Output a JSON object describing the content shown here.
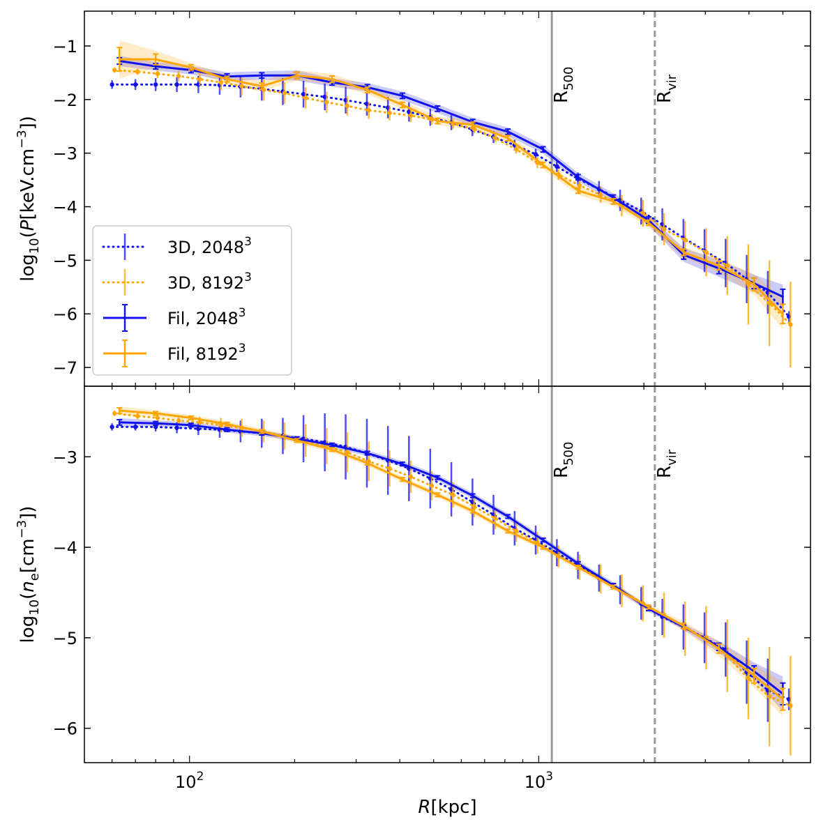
{
  "chart_data": {
    "type": "line",
    "xscale": "log",
    "xlim": [
      50,
      6000
    ],
    "xlabel_italic": "R",
    "xlabel_unit": "[kpc]",
    "xticks": [
      {
        "value": 100,
        "base": "10",
        "exp": "2"
      },
      {
        "value": 1000,
        "base": "10",
        "exp": "3"
      }
    ],
    "colors": {
      "blue": "#1111ee",
      "orange": "#ffa500",
      "ref_solid": "#999999",
      "ref_dashed": "#999999"
    },
    "ref_lines": {
      "r500": {
        "x": 1090,
        "label_main": "R",
        "label_sub": "500",
        "style": "solid"
      },
      "rvir": {
        "x": 2150,
        "label_main": "R",
        "label_sub": "vir",
        "style": "dashed"
      }
    },
    "legend": {
      "location": "lower-left of top panel",
      "entries": [
        {
          "key": "d3_2048",
          "text": "3D, 2048",
          "sup": "3",
          "color": "blue",
          "style": "dotted"
        },
        {
          "key": "d3_8192",
          "text": "3D, 8192",
          "sup": "3",
          "color": "orange",
          "style": "dotted"
        },
        {
          "key": "fil_2048",
          "text": "Fil, 2048",
          "sup": "3",
          "color": "blue",
          "style": "solid"
        },
        {
          "key": "fil_8192",
          "text": "Fil, 8192",
          "sup": "3",
          "color": "orange",
          "style": "solid"
        }
      ]
    },
    "panels": [
      {
        "name": "pressure",
        "ylabel": {
          "pre": "log",
          "pre_sub": "10",
          "open": "(",
          "var": "P",
          "unit_pre": "[keV.cm",
          "unit_sup": "−3",
          "close": "])"
        },
        "ylim": [
          -7.35,
          -0.35
        ],
        "yticks": [
          {
            "value": -1,
            "label": "−1"
          },
          {
            "value": -2,
            "label": "−2"
          },
          {
            "value": -3,
            "label": "−3"
          },
          {
            "value": -4,
            "label": "−4"
          },
          {
            "value": -5,
            "label": "−5"
          },
          {
            "value": -6,
            "label": "−6"
          },
          {
            "value": -7,
            "label": "−7"
          }
        ],
        "series": [
          {
            "name": "3D, 2048³",
            "color": "blue",
            "style": "dotted",
            "x": [
              60,
              70,
              80,
              92,
              106,
              122,
              140,
              161,
              185,
              212,
              244,
              280,
              322,
              370,
              425,
              489,
              562,
              646,
              742,
              853,
              980,
              1127,
              1295,
              1488,
              1710,
              1965,
              2259,
              2596,
              2983,
              3428,
              3940,
              4528,
              5204
            ],
            "y": [
              -1.72,
              -1.72,
              -1.72,
              -1.72,
              -1.72,
              -1.73,
              -1.76,
              -1.8,
              -1.85,
              -1.9,
              -1.95,
              -2.01,
              -2.08,
              -2.15,
              -2.23,
              -2.33,
              -2.43,
              -2.56,
              -2.7,
              -2.85,
              -3.02,
              -3.25,
              -3.48,
              -3.67,
              -3.88,
              -4.08,
              -4.33,
              -4.58,
              -4.82,
              -5.05,
              -5.35,
              -5.6,
              -6.05
            ],
            "err": [
              0.08,
              0.1,
              0.12,
              0.14,
              0.16,
              0.18,
              0.2,
              0.22,
              0.25,
              0.25,
              0.25,
              0.25,
              0.22,
              0.2,
              0.18,
              0.16,
              0.14,
              0.12,
              0.11,
              0.1,
              0.1,
              0.1,
              0.12,
              0.15,
              0.2,
              0.25,
              0.3,
              0.35,
              0.4,
              0.45,
              0.45,
              0.4,
              0.1
            ]
          },
          {
            "name": "3D, 8192³",
            "color": "orange",
            "style": "dotted",
            "x": [
              61,
              71,
              81,
              93,
              107,
              123,
              141,
              163,
              187,
              215,
              247,
              283,
              326,
              374,
              430,
              494,
              568,
              653,
              750,
              862,
              991,
              1139,
              1309,
              1504,
              1729,
              1987,
              2284,
              2624,
              3016,
              3466,
              3983,
              4577,
              5260
            ],
            "y": [
              -1.45,
              -1.48,
              -1.52,
              -1.56,
              -1.62,
              -1.68,
              -1.75,
              -1.82,
              -1.88,
              -1.97,
              -2.05,
              -2.12,
              -2.2,
              -2.25,
              -2.3,
              -2.37,
              -2.45,
              -2.55,
              -2.72,
              -2.93,
              -3.18,
              -3.4,
              -3.6,
              -3.78,
              -3.98,
              -4.12,
              -4.42,
              -4.62,
              -4.85,
              -5.1,
              -5.45,
              -5.8,
              -6.2
            ],
            "err": [
              0.05,
              0.06,
              0.08,
              0.1,
              0.12,
              0.15,
              0.18,
              0.2,
              0.2,
              0.2,
              0.2,
              0.18,
              0.16,
              0.14,
              0.12,
              0.1,
              0.1,
              0.08,
              0.08,
              0.08,
              0.1,
              0.1,
              0.12,
              0.15,
              0.2,
              0.25,
              0.3,
              0.35,
              0.45,
              0.55,
              0.75,
              0.8,
              0.8
            ]
          },
          {
            "name": "Fil, 2048³",
            "color": "blue",
            "style": "solid",
            "x": [
              63,
              80,
              101,
              128,
              161,
              203,
              256,
              323,
              407,
              513,
              647,
              816,
              1029,
              1297,
              1636,
              2063,
              2601,
              3280,
              4137,
              5000
            ],
            "y": [
              -1.28,
              -1.38,
              -1.45,
              -1.57,
              -1.55,
              -1.55,
              -1.68,
              -1.77,
              -1.93,
              -2.17,
              -2.42,
              -2.6,
              -2.93,
              -3.45,
              -3.83,
              -4.25,
              -4.9,
              -5.15,
              -5.43,
              -5.68
            ],
            "err": [
              0.06,
              0.05,
              0.05,
              0.05,
              0.05,
              0.06,
              0.05,
              0.05,
              0.05,
              0.05,
              0.05,
              0.05,
              0.05,
              0.05,
              0.05,
              0.06,
              0.08,
              0.1,
              0.1,
              0.14
            ]
          },
          {
            "name": "Fil, 8192³",
            "color": "orange",
            "style": "solid",
            "x": [
              63,
              80,
              101,
              128,
              161,
              203,
              256,
              323,
              407,
              513,
              647,
              816,
              1029,
              1297,
              1636,
              2063,
              2601,
              3280,
              4137,
              5000
            ],
            "y": [
              -1.25,
              -1.25,
              -1.4,
              -1.62,
              -1.75,
              -1.55,
              -1.62,
              -1.82,
              -2.1,
              -2.4,
              -2.47,
              -2.72,
              -3.22,
              -3.7,
              -3.9,
              -4.3,
              -4.85,
              -5.1,
              -5.45,
              -6.0
            ],
            "err": [
              0.22,
              0.1,
              0.05,
              0.05,
              0.06,
              0.06,
              0.06,
              0.05,
              0.05,
              0.05,
              0.05,
              0.05,
              0.05,
              0.05,
              0.05,
              0.05,
              0.06,
              0.08,
              0.12,
              0.18
            ]
          }
        ]
      },
      {
        "name": "density",
        "ylabel": {
          "pre": "log",
          "pre_sub": "10",
          "open": "(",
          "var": "n",
          "var_sub": "e",
          "unit_pre": "[cm",
          "unit_sup": "−3",
          "close": "])"
        },
        "ylim": [
          -6.38,
          -2.22
        ],
        "yticks": [
          {
            "value": -3,
            "label": "−3"
          },
          {
            "value": -4,
            "label": "−4"
          },
          {
            "value": -5,
            "label": "−5"
          },
          {
            "value": -6,
            "label": "−6"
          }
        ],
        "series": [
          {
            "name": "3D, 2048³",
            "color": "blue",
            "style": "dotted",
            "x": [
              60,
              70,
              80,
              92,
              106,
              122,
              140,
              161,
              185,
              212,
              244,
              280,
              322,
              370,
              425,
              489,
              562,
              646,
              742,
              853,
              980,
              1127,
              1295,
              1488,
              1710,
              1965,
              2259,
              2596,
              2983,
              3428,
              3940,
              4528,
              5204
            ],
            "y": [
              -2.67,
              -2.67,
              -2.67,
              -2.68,
              -2.69,
              -2.7,
              -2.72,
              -2.74,
              -2.77,
              -2.8,
              -2.84,
              -2.89,
              -2.96,
              -3.04,
              -3.13,
              -3.24,
              -3.36,
              -3.5,
              -3.64,
              -3.79,
              -3.92,
              -4.06,
              -4.2,
              -4.34,
              -4.47,
              -4.62,
              -4.77,
              -4.88,
              -5.0,
              -5.13,
              -5.38,
              -5.58,
              -5.68
            ],
            "err": [
              0.04,
              0.04,
              0.05,
              0.06,
              0.07,
              0.09,
              0.12,
              0.16,
              0.2,
              0.26,
              0.32,
              0.36,
              0.38,
              0.38,
              0.36,
              0.33,
              0.3,
              0.26,
              0.22,
              0.19,
              0.16,
              0.15,
              0.15,
              0.15,
              0.16,
              0.18,
              0.2,
              0.25,
              0.28,
              0.3,
              0.35,
              0.35,
              0.12
            ]
          },
          {
            "name": "3D, 8192³",
            "color": "orange",
            "style": "dotted",
            "x": [
              61,
              71,
              81,
              93,
              107,
              123,
              141,
              163,
              187,
              215,
              247,
              283,
              326,
              374,
              430,
              494,
              568,
              653,
              750,
              862,
              991,
              1139,
              1309,
              1504,
              1729,
              1987,
              2284,
              2624,
              3016,
              3466,
              3983,
              4577,
              5260
            ],
            "y": [
              -2.52,
              -2.55,
              -2.57,
              -2.6,
              -2.62,
              -2.65,
              -2.68,
              -2.72,
              -2.77,
              -2.82,
              -2.88,
              -2.95,
              -3.05,
              -3.13,
              -3.22,
              -3.32,
              -3.42,
              -3.55,
              -3.68,
              -3.82,
              -3.95,
              -4.1,
              -4.22,
              -4.35,
              -4.48,
              -4.62,
              -4.75,
              -4.9,
              -5.0,
              -5.2,
              -5.45,
              -5.65,
              -5.75
            ],
            "err": [
              0.03,
              0.04,
              0.05,
              0.05,
              0.06,
              0.08,
              0.1,
              0.12,
              0.15,
              0.18,
              0.2,
              0.22,
              0.22,
              0.2,
              0.18,
              0.16,
              0.14,
              0.12,
              0.12,
              0.12,
              0.12,
              0.12,
              0.14,
              0.16,
              0.18,
              0.2,
              0.25,
              0.3,
              0.35,
              0.4,
              0.45,
              0.55,
              0.55
            ]
          },
          {
            "name": "Fil, 2048³",
            "color": "blue",
            "style": "solid",
            "x": [
              63,
              80,
              101,
              128,
              161,
              203,
              256,
              323,
              407,
              513,
              647,
              816,
              1029,
              1297,
              1636,
              2063,
              2601,
              3280,
              4137,
              5000
            ],
            "y": [
              -2.62,
              -2.63,
              -2.65,
              -2.7,
              -2.74,
              -2.8,
              -2.87,
              -2.96,
              -3.08,
              -3.23,
              -3.43,
              -3.66,
              -3.92,
              -4.18,
              -4.42,
              -4.68,
              -4.88,
              -5.1,
              -5.37,
              -5.62
            ],
            "err": [
              0.03,
              0.02,
              0.02,
              0.02,
              0.02,
              0.02,
              0.02,
              0.02,
              0.02,
              0.02,
              0.02,
              0.02,
              0.02,
              0.02,
              0.02,
              0.02,
              0.02,
              0.04,
              0.06,
              0.12
            ]
          },
          {
            "name": "Fil, 8192³",
            "color": "orange",
            "style": "solid",
            "x": [
              63,
              80,
              101,
              128,
              161,
              203,
              256,
              323,
              407,
              513,
              647,
              816,
              1029,
              1297,
              1636,
              2063,
              2601,
              3280,
              4137,
              5000
            ],
            "y": [
              -2.49,
              -2.52,
              -2.57,
              -2.64,
              -2.72,
              -2.82,
              -2.92,
              -3.07,
              -3.25,
              -3.42,
              -3.6,
              -3.82,
              -4.0,
              -4.22,
              -4.44,
              -4.66,
              -4.87,
              -5.12,
              -5.42,
              -5.68
            ],
            "err": [
              0.03,
              0.02,
              0.02,
              0.02,
              0.02,
              0.02,
              0.02,
              0.02,
              0.02,
              0.02,
              0.02,
              0.02,
              0.02,
              0.02,
              0.02,
              0.02,
              0.03,
              0.05,
              0.08,
              0.12
            ]
          }
        ]
      }
    ]
  }
}
